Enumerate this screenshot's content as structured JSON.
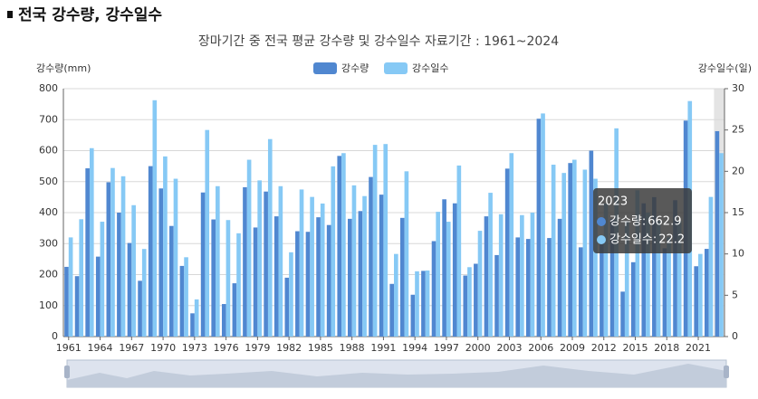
{
  "header": {
    "title": "전국 강수량, 강수일수"
  },
  "chart_data": {
    "type": "bar",
    "title": "장마기간 중 전국 평균 강수량 및 강수일수 자료기간 : 1961~2024",
    "ylabel": "강수량(mm)",
    "y2label": "강수일수(일)",
    "categories": [
      "1961",
      null,
      null,
      "1964",
      null,
      null,
      "1967",
      null,
      null,
      "1970",
      null,
      null,
      "1973",
      null,
      null,
      "1976",
      null,
      null,
      "1979",
      null,
      null,
      "1982",
      null,
      null,
      "1985",
      null,
      null,
      "1988",
      null,
      null,
      "1991",
      null,
      null,
      "1994",
      null,
      null,
      "1997",
      null,
      null,
      "2000",
      null,
      null,
      "2003",
      null,
      null,
      "2006",
      null,
      null,
      "2009",
      null,
      null,
      "2012",
      null,
      null,
      "2015",
      null,
      null,
      "2018",
      null,
      null,
      "2021",
      null,
      null
    ],
    "series": [
      {
        "name": "강수량",
        "color": "#5087d0",
        "values": [
          225,
          195,
          543,
          258,
          498,
          400,
          302,
          180,
          550,
          478,
          357,
          228,
          75,
          465,
          378,
          105,
          172,
          482,
          352,
          468,
          388,
          190,
          340,
          338,
          385,
          360,
          583,
          380,
          405,
          515,
          458,
          170,
          383,
          135,
          212,
          308,
          443,
          430,
          197,
          235,
          388,
          263,
          542,
          320,
          315,
          703,
          318,
          380,
          560,
          288,
          600,
          305,
          380,
          145,
          240,
          430,
          450,
          285,
          440,
          697,
          227,
          283,
          662.9
        ]
      },
      {
        "name": "강수일수",
        "color": "#86c9f5",
        "axis": "y2",
        "values": [
          12.0,
          14.2,
          22.8,
          13.9,
          20.4,
          19.4,
          15.9,
          10.6,
          28.6,
          21.8,
          19.1,
          9.6,
          4.5,
          25.0,
          18.2,
          14.1,
          12.5,
          21.4,
          18.9,
          23.9,
          18.2,
          10.2,
          17.8,
          16.9,
          16.1,
          20.6,
          22.2,
          18.3,
          17.0,
          23.2,
          23.3,
          10.0,
          20.0,
          7.9,
          8.0,
          15.1,
          13.9,
          20.7,
          8.4,
          12.8,
          17.4,
          14.8,
          22.2,
          14.7,
          15.0,
          27.0,
          20.8,
          19.8,
          21.4,
          20.2,
          19.1,
          16.1,
          25.2,
          14.0,
          17.7,
          15.0,
          14.0,
          12.0,
          14.0,
          28.5,
          10.0,
          16.9,
          22.2
        ]
      }
    ],
    "ylim": [
      0,
      800
    ],
    "yticks": [
      0,
      100,
      200,
      300,
      400,
      500,
      600,
      700,
      800
    ],
    "y2lim": [
      0,
      30
    ],
    "y2ticks": [
      0,
      5,
      10,
      15,
      20,
      25,
      30
    ],
    "grid": true,
    "legend": "top",
    "tooltip": {
      "title": "2023",
      "labels": [
        "강수량:",
        "강수일수:"
      ]
    }
  }
}
